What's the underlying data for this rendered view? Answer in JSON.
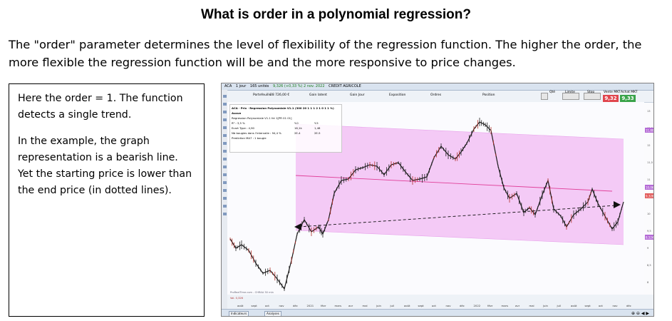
{
  "title": "What is order in a polynomial regression?",
  "intro": "The \"order\" parameter determines the level of flexibility of the regression function. The higher the order, the more flexible the regression function will be and the more responsive to price changes.",
  "explanation": {
    "p1": "Here the order = 1. The function detects a single trend.",
    "p2": "In the example, the graph representation is a bearish line. Yet the starting price is lower than the end price (in dotted lines)."
  },
  "screenshot": {
    "toolbar": {
      "symbol": "ACA",
      "period": "1 jour",
      "units": "165 unités",
      "quote": "9,326 (+0,33 %) 2 nov. 2022",
      "name": "CREDIT AGRICOLE"
    },
    "fields": {
      "portfolio_label": "Portefeuille",
      "portfolio_value": "28 726,00 €",
      "gain_latent": "Gain latent",
      "gain_jour": "Gain Jour",
      "exposition": "Exposition",
      "ordres": "Ordres",
      "position": "Position",
      "qte": "Qté",
      "limite": "Limite",
      "stop": "Stop",
      "vente": "Vente MKT",
      "achat": "Achat MKT",
      "sell_price": "9,32",
      "buy_price": "9,33"
    },
    "info": {
      "header": "ACA · Prix · Regression Polynomiale V1.1 (300 20 1 1 1 2 1 0 1 1 %)  Aucun",
      "subheader": "Regression Polynomiale V1.1 fct 1[PR 01 01]",
      "rows": [
        {
          "k": "R² : 3,5 %",
          "a": "Y-0",
          "b": "Y-5"
        },
        {
          "k": "Ecart Type : 4,90",
          "a": "16,1k",
          "b": "1,48"
        },
        {
          "k": "Nb bougies dans l'intervalle : 94,4 %",
          "a": "2E-4",
          "b": "2E-5"
        },
        {
          "k": "Prediction MA7 : 1 bougie",
          "a": "",
          "b": ""
        }
      ]
    },
    "right_axis": [
      "13",
      "12,5",
      "12",
      "11,5",
      "11",
      "10,5",
      "10",
      "9,5",
      "9",
      "8,5",
      "8",
      "7,5",
      "7",
      "6,5",
      "6",
      "5,5"
    ],
    "price_tags": {
      "upper": "11,802",
      "mid_top": "10,063",
      "mid_bot": "9,326",
      "lower": "8,524"
    },
    "months": [
      "août",
      "sept",
      "oct",
      "nov",
      "déc",
      "2021",
      "févr",
      "mars",
      "avr",
      "mai",
      "juin",
      "juil",
      "août",
      "sept",
      "oct",
      "nov",
      "déc",
      "2022",
      "févr",
      "mars",
      "avr",
      "mai",
      "juin",
      "juil",
      "août",
      "sept",
      "oct",
      "nov",
      "déc"
    ],
    "watermark": "ProRealTime.com - CHRAA 30 min",
    "vol_label": "Vol. 0,326",
    "bottom_tabs": [
      "Indicateurs",
      "Analyses"
    ]
  }
}
